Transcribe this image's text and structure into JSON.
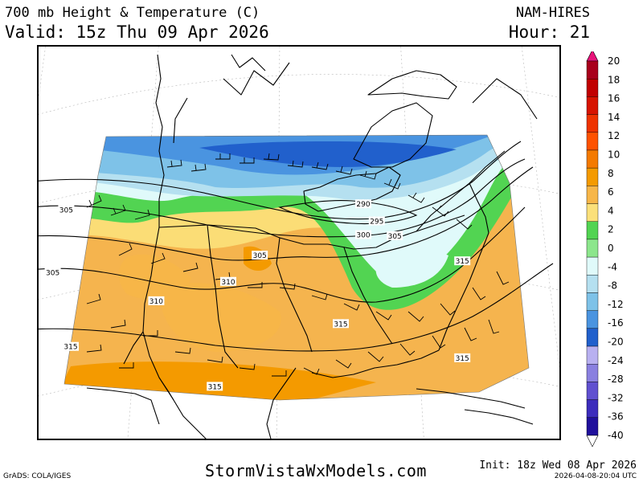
{
  "header": {
    "title": "700 mb Height & Temperature (C)",
    "valid": "Valid: 15z Thu 09 Apr 2026",
    "model": "NAM-HIRES",
    "hour": "Hour: 21"
  },
  "map": {
    "contour_labels": [
      {
        "text": "305",
        "lon": -122.5,
        "lat": 46.5
      },
      {
        "text": "290",
        "lon": -89.5,
        "lat": 47.0
      },
      {
        "text": "295",
        "lon": -88.0,
        "lat": 45.5
      },
      {
        "text": "300",
        "lon": -89.5,
        "lat": 44.3
      },
      {
        "text": "305",
        "lon": -86.0,
        "lat": 44.2
      },
      {
        "text": "305",
        "lon": -101.0,
        "lat": 42.5
      },
      {
        "text": "315",
        "lon": -78.5,
        "lat": 42.0
      },
      {
        "text": "305",
        "lon": -124.0,
        "lat": 41.0
      },
      {
        "text": "310",
        "lon": -104.5,
        "lat": 40.2
      },
      {
        "text": "310",
        "lon": -112.5,
        "lat": 38.5
      },
      {
        "text": "315",
        "lon": -92.0,
        "lat": 36.5
      },
      {
        "text": "315",
        "lon": -122.0,
        "lat": 34.5
      },
      {
        "text": "315",
        "lon": -78.5,
        "lat": 33.5
      },
      {
        "text": "315",
        "lon": -106.0,
        "lat": 31.0
      }
    ]
  },
  "colorbar": {
    "labels": [
      "20",
      "18",
      "16",
      "14",
      "12",
      "10",
      "8",
      "6",
      "4",
      "2",
      "0",
      "-4",
      "-8",
      "-12",
      "-16",
      "-20",
      "-24",
      "-28",
      "-32",
      "-36",
      "-40"
    ],
    "colors": [
      "#a8001c",
      "#c10000",
      "#d71400",
      "#ee3300",
      "#ff5200",
      "#f47a00",
      "#f49a00",
      "#f7b648",
      "#fbe07a",
      "#52d452",
      "#8ce68c",
      "#e0fafa",
      "#b5e0f0",
      "#7ec2e8",
      "#4a94e0",
      "#2160cc",
      "#b8b0f0",
      "#8a80e0",
      "#6050d0",
      "#3c2cbc",
      "#20109c"
    ],
    "top_arrow_color": "#e8137a",
    "bottom_arrow_color": "#ffffff"
  },
  "footer": {
    "left": "GrADS: COLA/IGES",
    "center": "StormVistaWxModels.com",
    "init": "Init: 18z Wed 08 Apr 2026",
    "generated": "2026-04-08-20:04 UTC"
  }
}
